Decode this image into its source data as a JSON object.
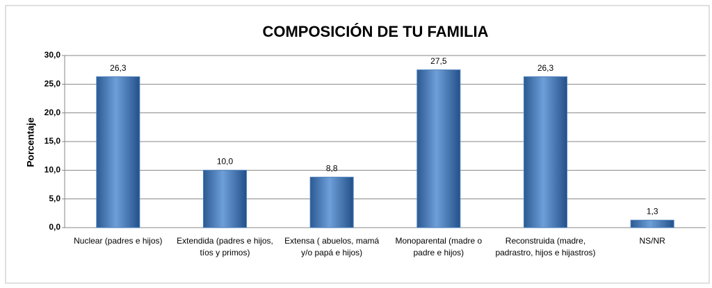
{
  "chart_data": {
    "type": "bar",
    "title": "COMPOSICIÓN DE TU FAMILIA",
    "y_label": "Porcentaje",
    "categories": [
      "Nuclear (padres e hijos)",
      "Extendida (padres e hijos, tíos y primos)",
      "Extensa ( abuelos, mamá y/o papá e hijos)",
      "Monoparental (madre o padre e hijos)",
      "Reconstruida (madre, padrastro, hijos e hijastros)",
      "NS/NR"
    ],
    "values": [
      26.3,
      10.0,
      8.8,
      27.5,
      26.3,
      1.3
    ],
    "value_labels": [
      "26,3",
      "10,0",
      "8,8",
      "27,5",
      "26,3",
      "1,3"
    ],
    "color": "#4a7ebb",
    "ylim": [
      0,
      30
    ],
    "yticks": [
      {
        "value": 0,
        "label": "0,0"
      },
      {
        "value": 5,
        "label": "5,0"
      },
      {
        "value": 10,
        "label": "10,0"
      },
      {
        "value": 15,
        "label": "15,0"
      },
      {
        "value": 20,
        "label": "20,0"
      },
      {
        "value": 25,
        "label": "25,0"
      },
      {
        "value": 30,
        "label": "30,0"
      }
    ],
    "grid": true
  }
}
